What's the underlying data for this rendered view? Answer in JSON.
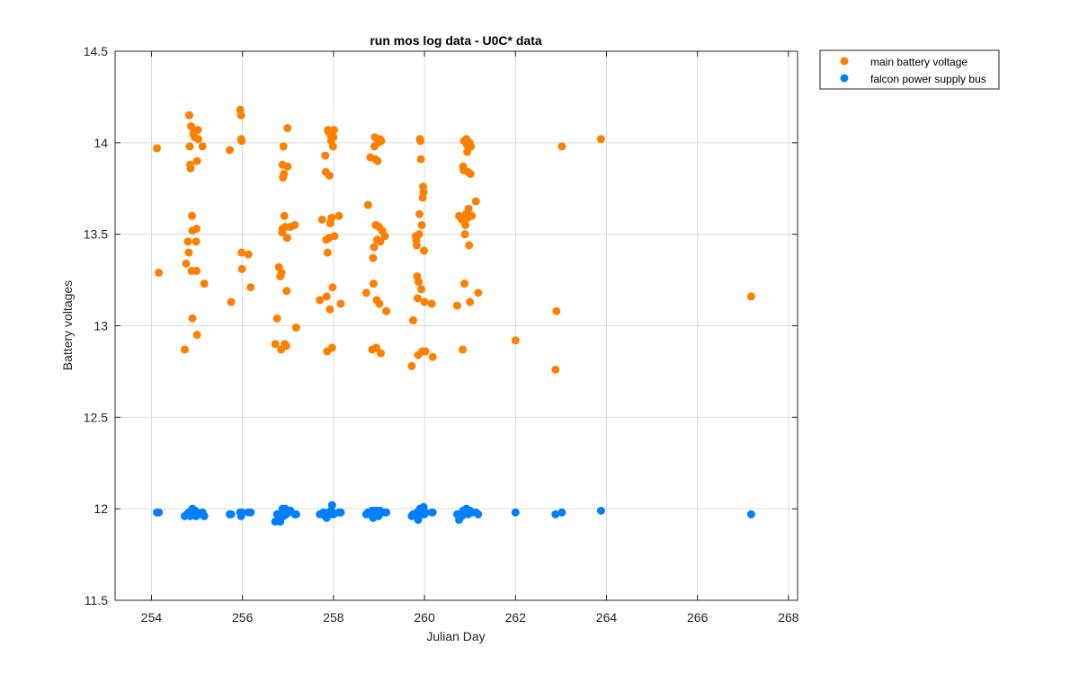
{
  "chart_data": {
    "type": "scatter",
    "title": "run mos log data - U0C* data",
    "xlabel": "Julian Day",
    "ylabel": "Battery voltages",
    "xlim": [
      253.2,
      268.2
    ],
    "ylim": [
      11.5,
      14.5
    ],
    "xticks": [
      254,
      256,
      258,
      260,
      262,
      264,
      266,
      268
    ],
    "yticks": [
      11.5,
      12,
      12.5,
      13,
      13.5,
      14,
      14.5
    ],
    "ytick_labels": [
      "11.5",
      "12",
      "12.5",
      "13",
      "13.5",
      "14",
      "14.5"
    ],
    "grid": true,
    "legend_position": "outside top-right",
    "series": [
      {
        "name": "main battery voltage",
        "color": "#FF8000",
        "points": [
          [
            254.12,
            13.97
          ],
          [
            254.16,
            13.29
          ],
          [
            254.73,
            12.87
          ],
          [
            254.76,
            13.34
          ],
          [
            254.8,
            13.46
          ],
          [
            254.82,
            13.4
          ],
          [
            254.83,
            14.15
          ],
          [
            254.84,
            13.98
          ],
          [
            254.85,
            13.88
          ],
          [
            254.86,
            13.86
          ],
          [
            254.87,
            14.09
          ],
          [
            254.88,
            13.3
          ],
          [
            254.89,
            13.6
          ],
          [
            254.9,
            13.04
          ],
          [
            254.9,
            13.52
          ],
          [
            254.92,
            14.05
          ],
          [
            254.95,
            14.03
          ],
          [
            254.98,
            13.46
          ],
          [
            254.99,
            13.3
          ],
          [
            254.99,
            13.53
          ],
          [
            255.0,
            12.95
          ],
          [
            255.0,
            13.9
          ],
          [
            255.02,
            14.07
          ],
          [
            255.03,
            14.02
          ],
          [
            255.12,
            13.98
          ],
          [
            255.16,
            13.23
          ],
          [
            255.72,
            13.96
          ],
          [
            255.75,
            13.13
          ],
          [
            255.95,
            14.18
          ],
          [
            255.97,
            14.15
          ],
          [
            255.97,
            14.02
          ],
          [
            255.98,
            14.01
          ],
          [
            255.98,
            13.4
          ],
          [
            255.99,
            13.31
          ],
          [
            256.13,
            13.39
          ],
          [
            256.18,
            13.21
          ],
          [
            256.72,
            12.9
          ],
          [
            256.76,
            13.04
          ],
          [
            256.8,
            13.32
          ],
          [
            256.83,
            13.27
          ],
          [
            256.85,
            12.87
          ],
          [
            256.86,
            13.29
          ],
          [
            256.87,
            13.51
          ],
          [
            256.88,
            13.53
          ],
          [
            256.88,
            13.88
          ],
          [
            256.89,
            13.81
          ],
          [
            256.9,
            13.98
          ],
          [
            256.91,
            13.83
          ],
          [
            256.92,
            13.6
          ],
          [
            256.93,
            12.9
          ],
          [
            256.94,
            13.54
          ],
          [
            256.96,
            12.89
          ],
          [
            256.97,
            13.19
          ],
          [
            256.98,
            13.48
          ],
          [
            256.99,
            13.87
          ],
          [
            256.99,
            14.08
          ],
          [
            257.05,
            13.54
          ],
          [
            257.15,
            13.55
          ],
          [
            257.18,
            12.99
          ],
          [
            257.7,
            13.14
          ],
          [
            257.75,
            13.58
          ],
          [
            257.82,
            13.93
          ],
          [
            257.83,
            13.84
          ],
          [
            257.84,
            13.47
          ],
          [
            257.85,
            13.16
          ],
          [
            257.86,
            12.86
          ],
          [
            257.87,
            13.4
          ],
          [
            257.88,
            14.07
          ],
          [
            257.89,
            14.06
          ],
          [
            257.9,
            13.48
          ],
          [
            257.91,
            13.82
          ],
          [
            257.92,
            13.09
          ],
          [
            257.93,
            13.56
          ],
          [
            257.94,
            14.04
          ],
          [
            257.95,
            14.01
          ],
          [
            257.96,
            13.59
          ],
          [
            257.97,
            12.88
          ],
          [
            257.98,
            13.21
          ],
          [
            257.99,
            13.98
          ],
          [
            258.0,
            14.03
          ],
          [
            258.01,
            14.07
          ],
          [
            258.02,
            13.49
          ],
          [
            258.12,
            13.6
          ],
          [
            258.16,
            13.12
          ],
          [
            258.72,
            13.18
          ],
          [
            258.76,
            13.66
          ],
          [
            258.81,
            13.92
          ],
          [
            258.85,
            12.87
          ],
          [
            258.87,
            13.37
          ],
          [
            258.88,
            13.23
          ],
          [
            258.89,
            13.43
          ],
          [
            258.9,
            13.98
          ],
          [
            258.91,
            14.03
          ],
          [
            258.92,
            13.91
          ],
          [
            258.93,
            13.55
          ],
          [
            258.94,
            12.88
          ],
          [
            258.95,
            13.14
          ],
          [
            258.96,
            13.47
          ],
          [
            258.97,
            13.9
          ],
          [
            258.98,
            14.0
          ],
          [
            258.99,
            14.01
          ],
          [
            259.0,
            13.54
          ],
          [
            259.01,
            13.12
          ],
          [
            259.02,
            14.02
          ],
          [
            259.03,
            13.46
          ],
          [
            259.04,
            12.85
          ],
          [
            259.05,
            14.01
          ],
          [
            259.07,
            13.52
          ],
          [
            259.13,
            13.49
          ],
          [
            259.16,
            13.08
          ],
          [
            259.72,
            12.78
          ],
          [
            259.75,
            13.03
          ],
          [
            259.81,
            13.49
          ],
          [
            259.82,
            13.47
          ],
          [
            259.83,
            13.44
          ],
          [
            259.84,
            13.27
          ],
          [
            259.85,
            13.15
          ],
          [
            259.86,
            12.84
          ],
          [
            259.87,
            13.24
          ],
          [
            259.88,
            13.5
          ],
          [
            259.89,
            13.61
          ],
          [
            259.9,
            14.02
          ],
          [
            259.91,
            14.01
          ],
          [
            259.92,
            13.91
          ],
          [
            259.93,
            13.2
          ],
          [
            259.94,
            13.55
          ],
          [
            259.95,
            12.86
          ],
          [
            259.96,
            13.7
          ],
          [
            259.97,
            13.76
          ],
          [
            259.98,
            13.73
          ],
          [
            259.99,
            13.41
          ],
          [
            260.0,
            13.13
          ],
          [
            260.02,
            12.86
          ],
          [
            260.16,
            13.12
          ],
          [
            260.18,
            12.83
          ],
          [
            260.72,
            13.11
          ],
          [
            260.76,
            13.6
          ],
          [
            260.82,
            13.58
          ],
          [
            260.84,
            12.87
          ],
          [
            260.85,
            13.87
          ],
          [
            260.86,
            13.85
          ],
          [
            260.87,
            14.01
          ],
          [
            260.88,
            13.23
          ],
          [
            260.89,
            13.5
          ],
          [
            260.9,
            13.55
          ],
          [
            260.91,
            13.61
          ],
          [
            260.92,
            14.02
          ],
          [
            260.93,
            13.99
          ],
          [
            260.94,
            13.95
          ],
          [
            260.95,
            13.59
          ],
          [
            260.96,
            13.84
          ],
          [
            260.97,
            13.64
          ],
          [
            260.98,
            13.44
          ],
          [
            260.99,
            14.0
          ],
          [
            261.0,
            13.13
          ],
          [
            261.01,
            13.83
          ],
          [
            261.02,
            13.98
          ],
          [
            261.04,
            13.6
          ],
          [
            261.13,
            13.68
          ],
          [
            261.18,
            13.18
          ],
          [
            262.0,
            12.92
          ],
          [
            262.88,
            12.76
          ],
          [
            262.9,
            13.08
          ],
          [
            263.02,
            13.98
          ],
          [
            263.88,
            14.02
          ],
          [
            267.18,
            13.16
          ]
        ]
      },
      {
        "name": "falcon power supply bus",
        "color": "#0080FF",
        "points": [
          [
            254.12,
            11.98
          ],
          [
            254.16,
            11.98
          ],
          [
            254.73,
            11.96
          ],
          [
            254.78,
            11.97
          ],
          [
            254.82,
            11.98
          ],
          [
            254.85,
            11.96
          ],
          [
            254.88,
            11.99
          ],
          [
            254.9,
            12.0
          ],
          [
            254.93,
            11.97
          ],
          [
            254.96,
            11.99
          ],
          [
            254.98,
            11.96
          ],
          [
            255.0,
            11.98
          ],
          [
            255.03,
            11.97
          ],
          [
            255.12,
            11.98
          ],
          [
            255.16,
            11.96
          ],
          [
            255.72,
            11.97
          ],
          [
            255.75,
            11.97
          ],
          [
            255.95,
            11.98
          ],
          [
            255.97,
            11.96
          ],
          [
            255.99,
            11.98
          ],
          [
            256.13,
            11.98
          ],
          [
            256.18,
            11.98
          ],
          [
            256.72,
            11.93
          ],
          [
            256.76,
            11.97
          ],
          [
            256.8,
            11.95
          ],
          [
            256.83,
            11.93
          ],
          [
            256.85,
            11.96
          ],
          [
            256.87,
            11.98
          ],
          [
            256.88,
            12.0
          ],
          [
            256.9,
            11.96
          ],
          [
            256.92,
            11.98
          ],
          [
            256.94,
            12.0
          ],
          [
            256.96,
            11.97
          ],
          [
            256.98,
            11.99
          ],
          [
            257.0,
            11.98
          ],
          [
            257.05,
            11.99
          ],
          [
            257.15,
            11.97
          ],
          [
            257.18,
            11.97
          ],
          [
            257.7,
            11.97
          ],
          [
            257.78,
            11.98
          ],
          [
            257.82,
            11.96
          ],
          [
            257.85,
            11.95
          ],
          [
            257.87,
            11.97
          ],
          [
            257.9,
            11.98
          ],
          [
            257.92,
            11.97
          ],
          [
            257.95,
            11.99
          ],
          [
            257.97,
            12.02
          ],
          [
            258.0,
            11.97
          ],
          [
            258.12,
            11.98
          ],
          [
            258.16,
            11.98
          ],
          [
            258.72,
            11.97
          ],
          [
            258.76,
            11.98
          ],
          [
            258.81,
            11.97
          ],
          [
            258.85,
            11.99
          ],
          [
            258.87,
            11.95
          ],
          [
            258.89,
            11.96
          ],
          [
            258.91,
            11.98
          ],
          [
            258.93,
            11.99
          ],
          [
            258.95,
            11.97
          ],
          [
            258.97,
            11.98
          ],
          [
            258.99,
            11.96
          ],
          [
            259.02,
            11.99
          ],
          [
            259.05,
            11.98
          ],
          [
            259.13,
            11.98
          ],
          [
            259.16,
            11.98
          ],
          [
            259.72,
            11.96
          ],
          [
            259.75,
            11.97
          ],
          [
            259.81,
            11.97
          ],
          [
            259.84,
            11.98
          ],
          [
            259.86,
            11.94
          ],
          [
            259.88,
            11.96
          ],
          [
            259.9,
            12.0
          ],
          [
            259.92,
            11.99
          ],
          [
            259.94,
            11.98
          ],
          [
            259.96,
            12.0
          ],
          [
            259.98,
            12.01
          ],
          [
            260.0,
            11.97
          ],
          [
            260.02,
            11.98
          ],
          [
            260.16,
            11.98
          ],
          [
            260.18,
            11.98
          ],
          [
            260.72,
            11.97
          ],
          [
            260.76,
            11.94
          ],
          [
            260.82,
            11.96
          ],
          [
            260.85,
            11.99
          ],
          [
            260.88,
            11.98
          ],
          [
            260.9,
            11.99
          ],
          [
            260.92,
            12.0
          ],
          [
            260.94,
            11.98
          ],
          [
            260.96,
            11.97
          ],
          [
            260.98,
            11.99
          ],
          [
            261.0,
            11.99
          ],
          [
            261.04,
            11.98
          ],
          [
            261.13,
            11.98
          ],
          [
            261.18,
            11.97
          ],
          [
            262.0,
            11.98
          ],
          [
            262.88,
            11.97
          ],
          [
            263.02,
            11.98
          ],
          [
            263.88,
            11.99
          ],
          [
            267.18,
            11.97
          ]
        ]
      }
    ]
  }
}
